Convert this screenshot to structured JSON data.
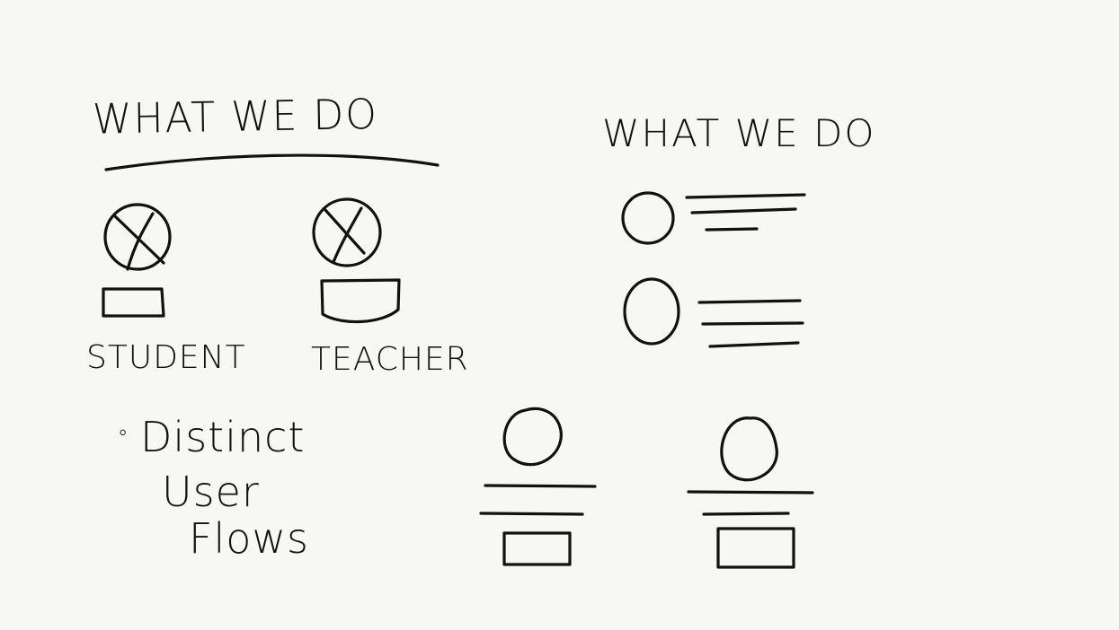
{
  "left_sketch": {
    "title": "WHAT WE DO",
    "cards": [
      {
        "label": "STUDENT",
        "icon": "avatar-placeholder-icon"
      },
      {
        "label": "TEACHER",
        "icon": "avatar-placeholder-icon"
      }
    ],
    "note": {
      "bullet": "◦",
      "lines": [
        "Distinct",
        "User",
        "Flows"
      ]
    }
  },
  "right_sketch": {
    "title": "WHAT WE DO"
  }
}
